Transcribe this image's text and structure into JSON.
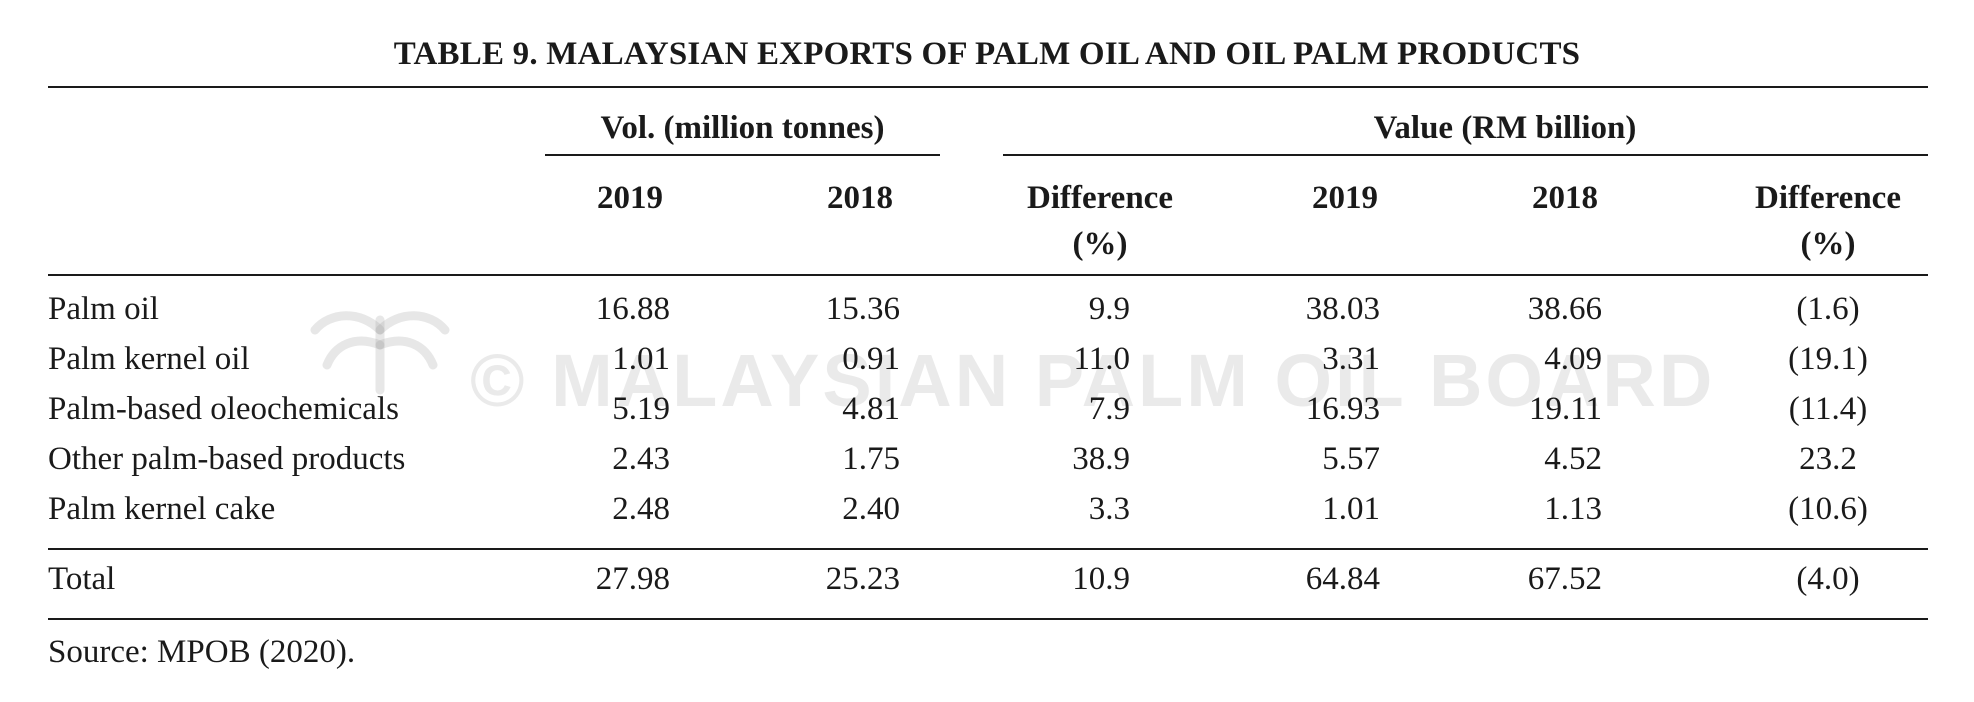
{
  "title": "TABLE 9. MALAYSIAN EXPORTS OF PALM OIL AND OIL PALM PRODUCTS",
  "group_headers": {
    "volume": "Vol. (million tonnes)",
    "value": "Value (RM billion)"
  },
  "columns": {
    "vol_2019": "2019",
    "vol_2018": "2018",
    "diff_line1": "Difference",
    "diff_line2": "(%)",
    "val_2019": "2019",
    "val_2018": "2018",
    "val_diff_line1": "Difference",
    "val_diff_line2": "(%)"
  },
  "rows": [
    {
      "label": "Palm oil",
      "vol_2019": "16.88",
      "vol_2018": "15.36",
      "vol_diff": "9.9",
      "val_2019": "38.03",
      "val_2018": "38.66",
      "val_diff": "(1.6)"
    },
    {
      "label": "Palm kernel oil",
      "vol_2019": "1.01",
      "vol_2018": "0.91",
      "vol_diff": "11.0",
      "val_2019": "3.31",
      "val_2018": "4.09",
      "val_diff": "(19.1)"
    },
    {
      "label": "Palm-based oleochemicals",
      "vol_2019": "5.19",
      "vol_2018": "4.81",
      "vol_diff": "7.9",
      "val_2019": "16.93",
      "val_2018": "19.11",
      "val_diff": "(11.4)"
    },
    {
      "label": "Other palm-based products",
      "vol_2019": "2.43",
      "vol_2018": "1.75",
      "vol_diff": "38.9",
      "val_2019": "5.57",
      "val_2018": "4.52",
      "val_diff": "23.2"
    },
    {
      "label": "Palm kernel cake",
      "vol_2019": "2.48",
      "vol_2018": "2.40",
      "vol_diff": "3.3",
      "val_2019": "1.01",
      "val_2018": "1.13",
      "val_diff": "(10.6)"
    }
  ],
  "total": {
    "label": "Total",
    "vol_2019": "27.98",
    "vol_2018": "25.23",
    "vol_diff": "10.9",
    "val_2019": "64.84",
    "val_2018": "67.52",
    "val_diff": "(4.0)"
  },
  "source": "Source: MPOB (2020).",
  "watermark": "© MALAYSIAN PALM OIL BOARD"
}
